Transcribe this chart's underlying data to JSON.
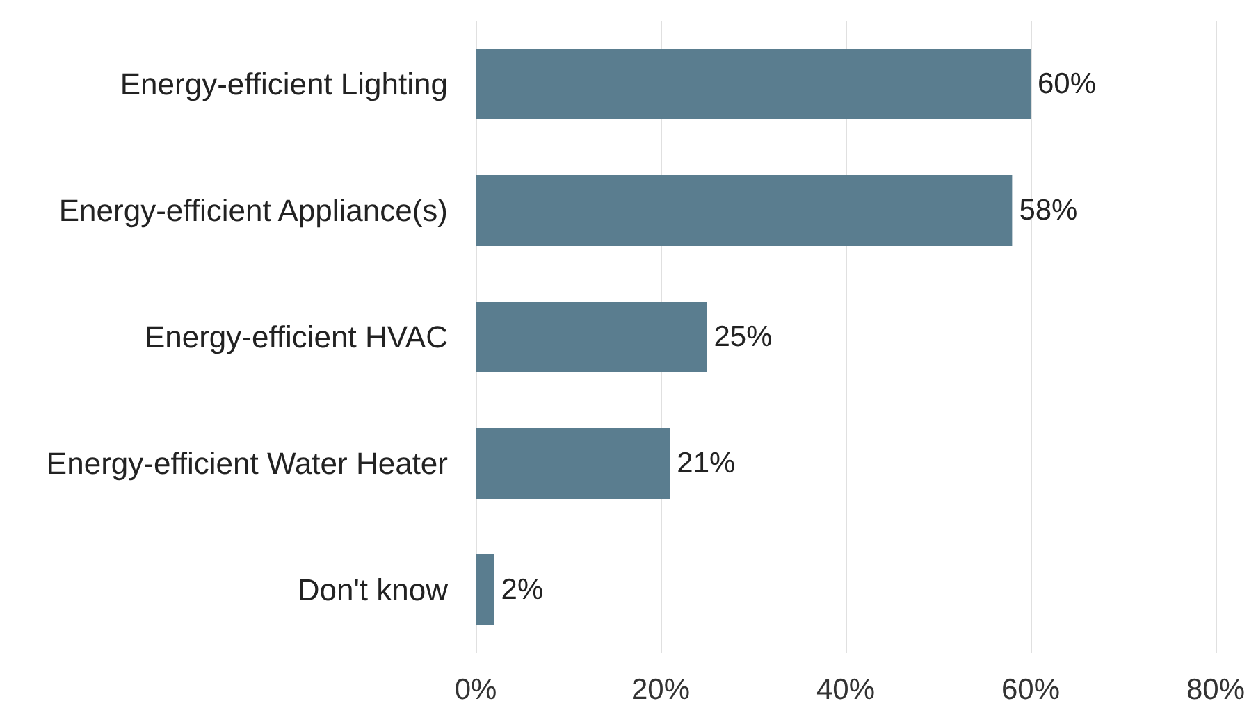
{
  "chart_data": {
    "type": "bar",
    "orientation": "horizontal",
    "categories": [
      "Energy-efficient Lighting",
      "Energy-efficient Appliance(s)",
      "Energy-efficient HVAC",
      "Energy-efficient Water Heater",
      "Don't know"
    ],
    "values": [
      60,
      58,
      25,
      21,
      2
    ],
    "color": "#5a7d8f",
    "value_labels": [
      "60%",
      "58%",
      "25%",
      "21%",
      "2%"
    ],
    "xlim": [
      0,
      80
    ],
    "xticks": [
      {
        "value": 0,
        "label": "0%"
      },
      {
        "value": 20,
        "label": "20%"
      },
      {
        "value": 40,
        "label": "40%"
      },
      {
        "value": 60,
        "label": "60%"
      },
      {
        "value": 80,
        "label": "80%"
      }
    ],
    "grid": "x"
  }
}
